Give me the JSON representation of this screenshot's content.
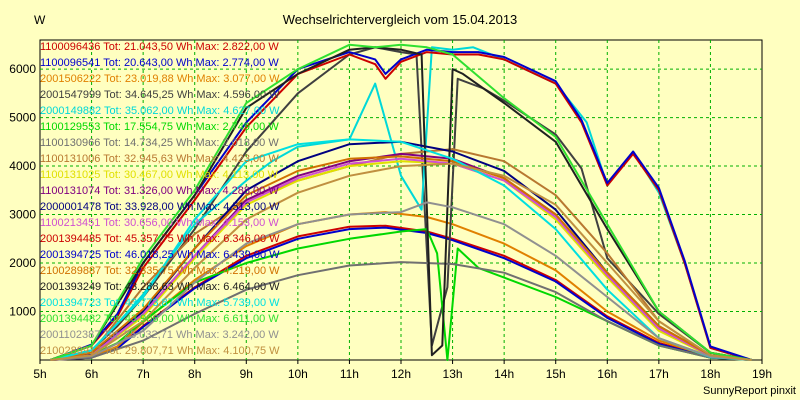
{
  "chart_data": {
    "type": "line",
    "title": "Wechselrichtervergleich vom 15.04.2013",
    "ylabel": "W",
    "xlabel": "",
    "footer": "SunnyReport pinxit",
    "x_tick_labels": [
      "5h",
      "6h",
      "7h",
      "8h",
      "9h",
      "10h",
      "11h",
      "12h",
      "13h",
      "14h",
      "15h",
      "16h",
      "17h",
      "18h",
      "19h"
    ],
    "y_ticks": [
      1000,
      2000,
      3000,
      4000,
      5000,
      6000
    ],
    "xlim": [
      5,
      19
    ],
    "ylim": [
      0,
      6600
    ],
    "grid": true,
    "series": [
      {
        "name": "1100096436 Tot: 21.043,50 Wh Max: 2.822,00 W",
        "color": "#cc0000",
        "x": [
          5.2,
          6,
          6.5,
          7,
          8,
          9,
          10,
          11,
          11.7,
          12.5,
          13,
          14,
          15,
          16,
          17,
          18,
          18.8
        ],
        "y": [
          0,
          50,
          250,
          700,
          1500,
          2150,
          2550,
          2750,
          2770,
          2650,
          2500,
          2150,
          1650,
          900,
          350,
          60,
          0
        ]
      },
      {
        "name": "1100096541 Tot: 20.643,00 Wh Max: 2.774,00 W",
        "color": "#0000cc",
        "x": [
          5.2,
          6,
          6.5,
          7,
          8,
          9,
          10,
          11,
          11.7,
          12.5,
          13,
          14,
          15,
          16,
          17,
          18,
          18.8
        ],
        "y": [
          0,
          50,
          240,
          680,
          1480,
          2100,
          2500,
          2700,
          2730,
          2620,
          2470,
          2100,
          1620,
          870,
          330,
          50,
          0
        ]
      },
      {
        "name": "2001506222 Tot: 23.019,88 Wh Max: 3.077,00 W",
        "color": "#e08000",
        "x": [
          5.2,
          6,
          6.5,
          7,
          8,
          9,
          10,
          11,
          11.7,
          12.5,
          13,
          14,
          15,
          16,
          17,
          18,
          18.8
        ],
        "y": [
          0,
          60,
          280,
          780,
          1650,
          2350,
          2800,
          3000,
          3050,
          2950,
          2800,
          2400,
          1850,
          1000,
          400,
          70,
          0
        ]
      },
      {
        "name": "2001547999 Tot: 34.645,25 Wh Max: 4.596,00 W",
        "color": "#404040",
        "x": [
          5.2,
          6,
          6.5,
          7,
          8,
          9,
          10,
          11,
          11.5,
          12,
          12.3,
          12.6,
          12.9,
          13.1,
          13.6,
          14,
          15,
          15.5,
          16,
          17,
          18,
          18.8
        ],
        "y": [
          0,
          200,
          700,
          1300,
          2700,
          4300,
          5500,
          6300,
          6450,
          6350,
          6300,
          300,
          1500,
          5800,
          5600,
          5350,
          4650,
          3950,
          2100,
          950,
          150,
          0
        ]
      },
      {
        "name": "2000149882 Tot: 35.062,00 Wh Max: 4.627,00 W",
        "color": "#00d8d8",
        "x": [
          5.2,
          6,
          6.5,
          7,
          8,
          9,
          9.5,
          10,
          11,
          11.5,
          12,
          12.4,
          12.6,
          13,
          13.4,
          14,
          15,
          15.6,
          16,
          16.5,
          17,
          17.5,
          18,
          18.8
        ],
        "y": [
          0,
          200,
          750,
          1350,
          2800,
          3700,
          4100,
          4400,
          4550,
          5700,
          3800,
          3100,
          6450,
          6400,
          6450,
          6200,
          5700,
          4900,
          3600,
          4300,
          3450,
          2000,
          250,
          0
        ]
      },
      {
        "name": "1100129553 Tot: 17.554,75 Wh Max: 2.749,00 W",
        "color": "#00d800",
        "x": [
          5.2,
          6,
          6.5,
          7,
          8,
          9,
          10,
          11,
          12,
          12.5,
          12.7,
          12.9,
          13.1,
          13.5,
          14,
          15,
          16,
          17,
          18,
          18.8
        ],
        "y": [
          0,
          100,
          350,
          800,
          1600,
          2000,
          2300,
          2500,
          2650,
          2700,
          2200,
          0,
          2300,
          1900,
          1700,
          1300,
          800,
          300,
          50,
          0
        ]
      },
      {
        "name": "1100130966 Tot: 14.734,25 Wh Max: 2.018,00 W",
        "color": "#707070",
        "x": [
          5.2,
          6,
          7,
          8,
          9,
          10,
          11,
          12,
          13,
          14,
          15,
          16,
          17,
          18,
          18.8
        ],
        "y": [
          0,
          50,
          400,
          950,
          1450,
          1750,
          1950,
          2020,
          1980,
          1800,
          1400,
          800,
          300,
          50,
          0
        ]
      },
      {
        "name": "1100131006 Tot: 32.945,63 Wh Max: 4.423,00 W",
        "color": "#b87830",
        "x": [
          5.2,
          6,
          7,
          8,
          9,
          10,
          11,
          12,
          12.5,
          13,
          14,
          15,
          16,
          17,
          18,
          18.8
        ],
        "y": [
          0,
          150,
          1500,
          2600,
          3300,
          3700,
          4000,
          4250,
          4300,
          4350,
          4100,
          3400,
          2200,
          800,
          100,
          0
        ]
      },
      {
        "name": "1100131025 Tot: 30.467,00 Wh Max: 4.113,00 W",
        "color": "#e0e000",
        "x": [
          5.2,
          6,
          7,
          8,
          9,
          10,
          11,
          12,
          13,
          14,
          15,
          16,
          17,
          18,
          18.8
        ],
        "y": [
          0,
          100,
          900,
          2100,
          3200,
          3700,
          4000,
          4100,
          4050,
          3700,
          2900,
          1700,
          600,
          80,
          0
        ]
      },
      {
        "name": "1100131074 Tot: 31.326,00 Wh Max: 4.288,00 W",
        "color": "#800080",
        "x": [
          5.2,
          6,
          7,
          8,
          9,
          10,
          11,
          12,
          13,
          14,
          15,
          16,
          17,
          18,
          18.8
        ],
        "y": [
          0,
          100,
          950,
          2150,
          3300,
          3800,
          4100,
          4250,
          4150,
          3750,
          3000,
          1750,
          650,
          90,
          0
        ]
      },
      {
        "name": "2000001478 Tot: 33.928,00 Wh Max: 4.513,00 W",
        "color": "#000080",
        "x": [
          5.2,
          6,
          7,
          8,
          9,
          10,
          11,
          12,
          13,
          14,
          15,
          16,
          17,
          18,
          18.8
        ],
        "y": [
          0,
          120,
          1000,
          2300,
          3500,
          4100,
          4450,
          4500,
          4300,
          3900,
          3100,
          1800,
          700,
          100,
          0
        ]
      },
      {
        "name": "1100213451 Tot: 30.656,00 Wh Max: 4.153,00 W",
        "color": "#d050d0",
        "x": [
          5.2,
          6,
          7,
          8,
          9,
          10,
          11,
          12,
          13,
          14,
          15,
          16,
          17,
          18,
          18.8
        ],
        "y": [
          0,
          100,
          950,
          2150,
          3250,
          3750,
          4050,
          4150,
          4050,
          3700,
          2950,
          1750,
          650,
          90,
          0
        ]
      },
      {
        "name": "2001394485 Tot: 45.357,75 Wh Max: 6.346,00 W",
        "color": "#cc0000",
        "x": [
          5.2,
          6,
          6.5,
          7,
          8,
          9,
          10,
          11,
          11.5,
          11.7,
          12,
          12.5,
          13,
          13.5,
          14,
          15,
          15.5,
          16,
          16.5,
          17,
          17.5,
          18,
          18.8
        ],
        "y": [
          0,
          300,
          900,
          1900,
          3300,
          4800,
          5900,
          6300,
          6100,
          5800,
          6150,
          6350,
          6300,
          6300,
          6200,
          5700,
          4900,
          3600,
          4250,
          3500,
          2000,
          250,
          0
        ]
      },
      {
        "name": "2001394725 Tot: 46.018,25 Wh Max: 6.439,00 W",
        "color": "#0000cc",
        "x": [
          5.2,
          6,
          6.5,
          7,
          8,
          9,
          10,
          11,
          11.5,
          11.7,
          12,
          12.5,
          13,
          13.5,
          14,
          15,
          15.5,
          16,
          16.5,
          17,
          17.5,
          18,
          18.8
        ],
        "y": [
          0,
          320,
          950,
          2000,
          3400,
          4900,
          6000,
          6350,
          6200,
          5900,
          6200,
          6400,
          6350,
          6350,
          6250,
          5750,
          4950,
          3650,
          4300,
          3550,
          2050,
          280,
          0
        ]
      },
      {
        "name": "2100289887 Tot: 32.335,75 Wh Max: 4.219,00 W",
        "color": "#d07000",
        "x": [
          5.2,
          6,
          7,
          8,
          9,
          10,
          11,
          12,
          13,
          14,
          15,
          16,
          17,
          18,
          18.8
        ],
        "y": [
          0,
          150,
          1050,
          2300,
          3400,
          3900,
          4150,
          4200,
          4100,
          3750,
          3000,
          1800,
          700,
          100,
          0
        ]
      },
      {
        "name": "2001393249 Tot: 43.288,63 Wh Max: 6.464,00 W",
        "color": "#202020",
        "x": [
          5.2,
          6,
          7,
          8,
          9,
          10,
          11,
          11.5,
          12,
          12.4,
          12.6,
          12.8,
          13,
          13.2,
          14,
          15,
          16,
          17,
          18,
          18.8
        ],
        "y": [
          0,
          300,
          2000,
          3400,
          5200,
          5900,
          6400,
          6450,
          6400,
          6300,
          100,
          300,
          6000,
          5900,
          5300,
          4500,
          2700,
          1000,
          150,
          0
        ]
      },
      {
        "name": "2001394723 Tot: 43.773,87 Wh Max: 5.739,00 W",
        "color": "#00e0e0",
        "x": [
          5.2,
          6,
          7,
          8,
          9,
          10,
          11,
          12,
          13,
          14,
          15,
          16,
          17,
          18,
          18.8
        ],
        "y": [
          0,
          200,
          1300,
          2900,
          4100,
          4450,
          4550,
          4500,
          4150,
          3600,
          2700,
          1450,
          450,
          60,
          0
        ]
      },
      {
        "name": "2001394482 Tot: 43.906,00 Wh Max: 6.611,00 W",
        "color": "#30e030",
        "x": [
          5.2,
          6,
          7,
          8,
          9,
          10,
          11,
          11.5,
          12,
          12.5,
          13,
          14,
          15,
          16,
          17,
          18,
          18.8
        ],
        "y": [
          0,
          300,
          2100,
          3500,
          5300,
          6000,
          6500,
          6450,
          6500,
          6450,
          6300,
          5400,
          4600,
          2800,
          1000,
          150,
          0
        ]
      },
      {
        "name": "2001102387 Tot: 25.032,71 Wh Max: 3.242,00 W",
        "color": "#909090",
        "x": [
          5.2,
          6,
          7,
          8,
          9,
          10,
          11,
          12,
          12.5,
          13,
          14,
          15,
          16,
          17,
          18,
          18.8
        ],
        "y": [
          0,
          80,
          600,
          1600,
          2400,
          2800,
          3000,
          3050,
          3250,
          3150,
          2800,
          2150,
          1300,
          450,
          70,
          0
        ]
      },
      {
        "name": "2100289917 Tot: 29.807,71 Wh Max: 4.100,75 W",
        "color": "#c09040",
        "x": [
          5.2,
          6,
          7,
          8,
          9,
          10,
          11,
          12,
          13,
          14,
          15,
          16,
          17,
          18,
          18.8
        ],
        "y": [
          0,
          100,
          800,
          1900,
          2900,
          3450,
          3800,
          4000,
          4050,
          3800,
          3200,
          2000,
          800,
          100,
          0
        ]
      }
    ]
  }
}
